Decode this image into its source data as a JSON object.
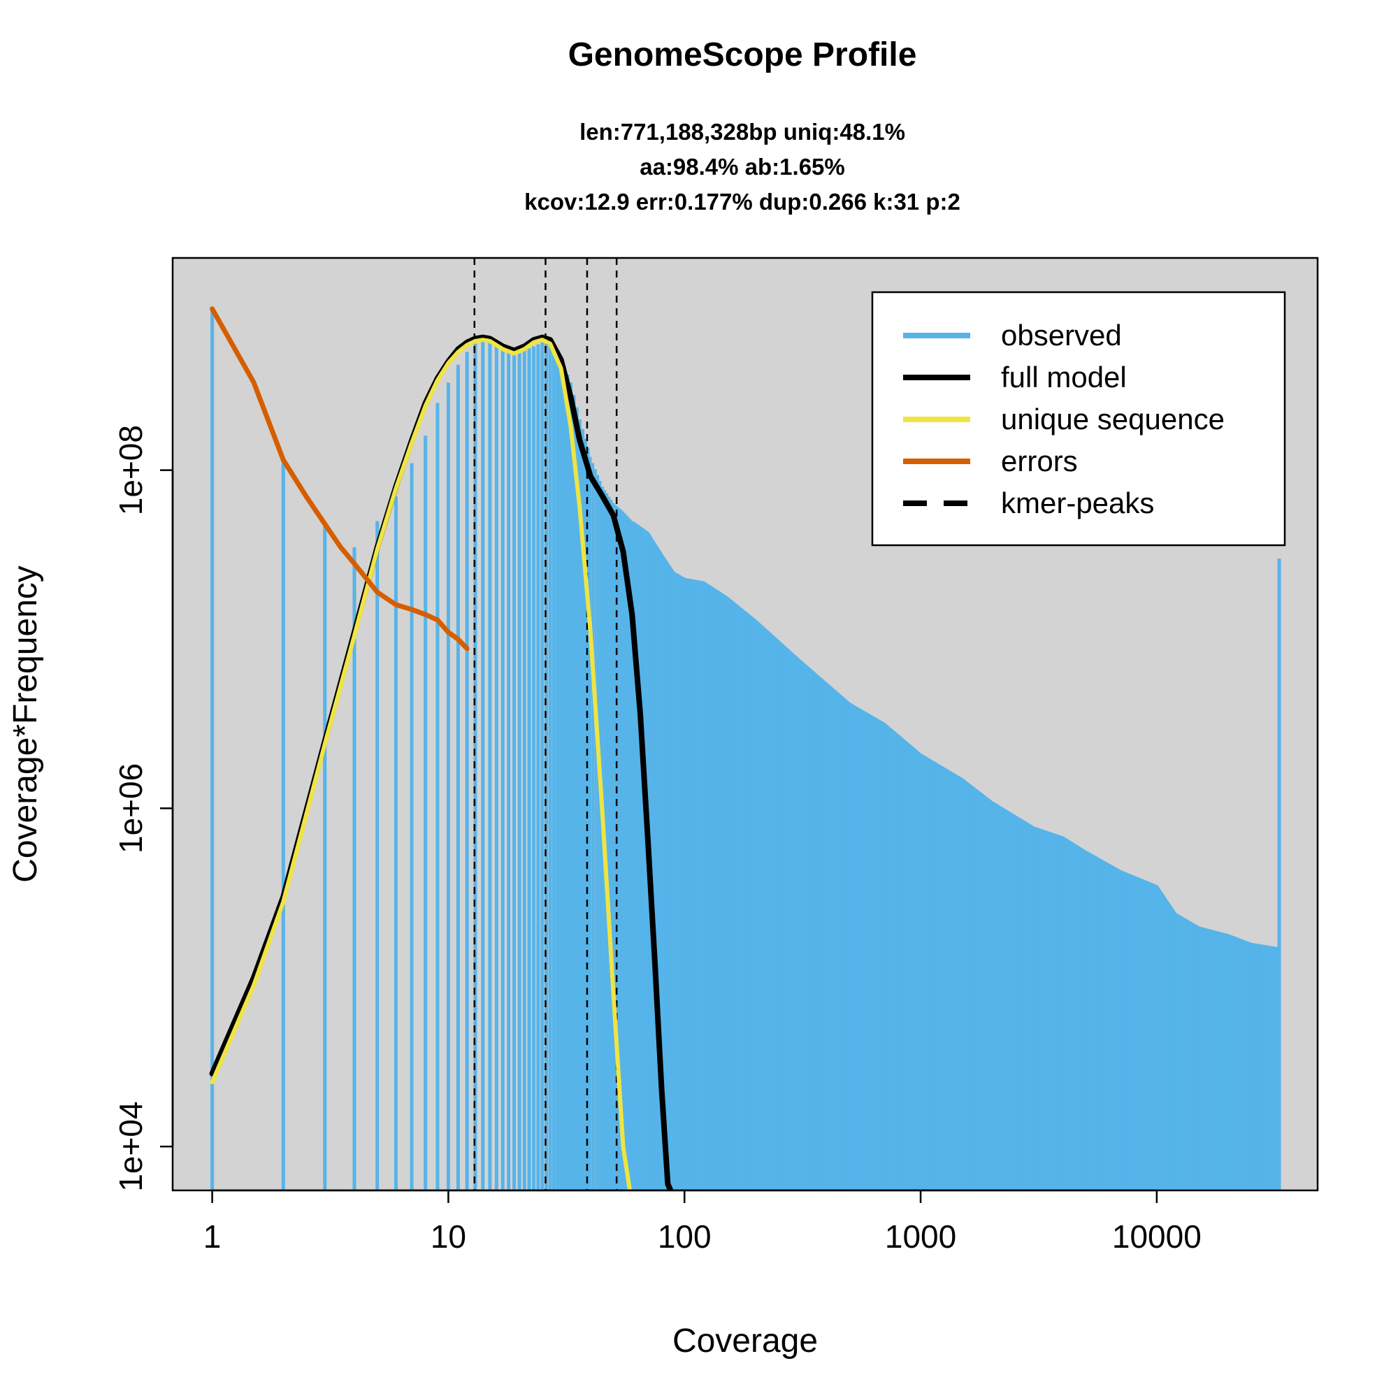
{
  "title": "GenomeScope Profile",
  "subtitle_lines": [
    "len:771,188,328bp uniq:48.1%",
    "aa:98.4% ab:1.65%",
    "kcov:12.9 err:0.177%  dup:0.266  k:31 p:2"
  ],
  "colors": {
    "background": "#d3d3d3",
    "observed": "#56b4e9",
    "full_model": "#000000",
    "unique_sequence": "#f0e442",
    "errors": "#d55e00",
    "kmer_peaks": "#000000"
  },
  "chart_data": {
    "type": "bar",
    "title": "GenomeScope Profile",
    "xlabel": "Coverage",
    "ylabel": "Coverage*Frequency",
    "x_scale": "log",
    "y_scale": "log",
    "xlim": [
      0.68,
      48000
    ],
    "ylim": [
      5500,
      1800000000
    ],
    "x_ticks": [
      1,
      10,
      100,
      1000,
      10000
    ],
    "x_tick_labels": [
      "1",
      "10",
      "100",
      "1000",
      "10000"
    ],
    "y_ticks": [
      10000,
      1000000,
      100000000
    ],
    "y_tick_labels": [
      "1e+04",
      "1e+06",
      "1e+08"
    ],
    "grid": false,
    "legend_position": "top-right",
    "legend": [
      "observed",
      "full model",
      "unique sequence",
      "errors",
      "kmer-peaks"
    ],
    "kmer_peaks": [
      12.9,
      25.8,
      38.7,
      51.6
    ],
    "observed_points": [
      [
        1,
        900000000
      ],
      [
        2,
        120000000
      ],
      [
        3,
        50000000
      ],
      [
        4,
        35000000
      ],
      [
        5,
        50000000
      ],
      [
        6,
        70000000
      ],
      [
        7,
        110000000
      ],
      [
        8,
        160000000
      ],
      [
        9,
        250000000
      ],
      [
        10,
        330000000
      ],
      [
        11,
        420000000
      ],
      [
        12,
        500000000
      ],
      [
        13,
        560000000
      ],
      [
        14,
        590000000
      ],
      [
        15,
        590000000
      ],
      [
        17,
        520000000
      ],
      [
        19,
        480000000
      ],
      [
        21,
        510000000
      ],
      [
        23,
        540000000
      ],
      [
        25,
        570000000
      ],
      [
        27,
        560000000
      ],
      [
        30,
        460000000
      ],
      [
        33,
        330000000
      ],
      [
        36,
        200000000
      ],
      [
        40,
        120000000
      ],
      [
        45,
        80000000
      ],
      [
        50,
        64000000
      ],
      [
        55,
        57000000
      ],
      [
        60,
        50000000
      ],
      [
        70,
        43000000
      ],
      [
        80,
        32000000
      ],
      [
        90,
        25000000
      ],
      [
        100,
        23000000
      ],
      [
        120,
        22000000
      ],
      [
        150,
        18000000
      ],
      [
        200,
        13000000
      ],
      [
        300,
        7800000
      ],
      [
        400,
        5500000
      ],
      [
        500,
        4200000
      ],
      [
        700,
        3200000
      ],
      [
        1000,
        2100000
      ],
      [
        1500,
        1500000
      ],
      [
        2000,
        1100000
      ],
      [
        3000,
        780000
      ],
      [
        4000,
        680000
      ],
      [
        5000,
        560000
      ],
      [
        7000,
        430000
      ],
      [
        10000,
        350000
      ],
      [
        12000,
        240000
      ],
      [
        15000,
        200000
      ],
      [
        20000,
        180000
      ],
      [
        25000,
        160000
      ],
      [
        33000,
        150000
      ]
    ],
    "series": [
      {
        "name": "full model",
        "x": [
          1,
          1.5,
          2,
          3,
          4,
          5,
          6,
          7,
          8,
          9,
          10,
          11,
          12,
          13,
          14,
          15,
          17,
          19,
          21,
          23,
          25,
          27,
          30,
          33,
          36,
          40,
          45,
          50,
          55,
          60,
          65,
          70,
          75,
          80,
          85,
          90
        ],
        "y": [
          27000,
          100000,
          300000,
          2500000,
          11000000,
          35000000,
          80000000,
          150000000,
          250000000,
          350000000,
          440000000,
          520000000,
          570000000,
          600000000,
          610000000,
          600000000,
          540000000,
          510000000,
          540000000,
          590000000,
          610000000,
          590000000,
          450000000,
          270000000,
          150000000,
          92000000,
          70000000,
          54000000,
          33000000,
          14000000,
          3600000,
          650000,
          120000,
          22000,
          6000,
          5000
        ]
      },
      {
        "name": "unique sequence",
        "x": [
          1,
          1.5,
          2,
          3,
          4,
          5,
          6,
          7,
          8,
          9,
          10,
          11,
          12,
          13,
          14,
          15,
          17,
          19,
          21,
          23,
          25,
          27,
          30,
          33,
          36,
          40,
          45,
          50,
          55,
          60
        ],
        "y": [
          24000,
          90000,
          280000,
          2400000,
          10500000,
          34000000,
          78000000,
          145000000,
          240000000,
          340000000,
          430000000,
          500000000,
          550000000,
          580000000,
          590000000,
          580000000,
          520000000,
          490000000,
          520000000,
          570000000,
          590000000,
          560000000,
          400000000,
          180000000,
          60000000,
          11000000,
          900000,
          80000,
          10000,
          4500
        ]
      },
      {
        "name": "errors",
        "x": [
          1,
          1.5,
          2,
          2.5,
          3,
          3.5,
          4,
          5,
          6,
          7,
          8,
          9,
          10,
          11,
          12
        ],
        "y": [
          900000000,
          330000000,
          115000000,
          70000000,
          48000000,
          35000000,
          28000000,
          19000000,
          16000000,
          15000000,
          14000000,
          13000000,
          11000000,
          10000000,
          8800000
        ]
      }
    ]
  }
}
